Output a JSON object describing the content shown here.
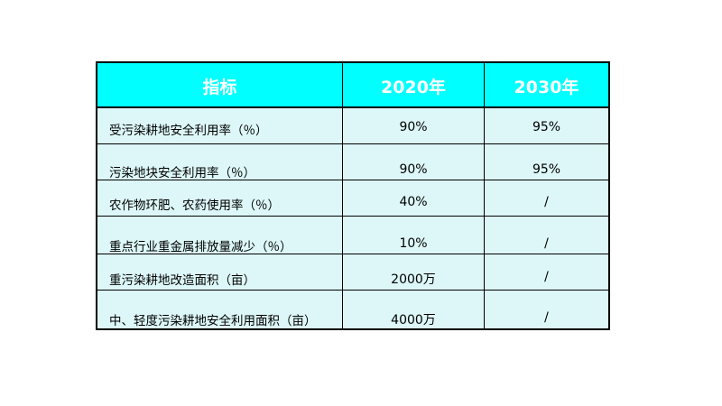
{
  "table": {
    "headers": [
      "指标",
      "2020年",
      "2030年"
    ],
    "rows": [
      {
        "indicator": "受污染耕地安全利用率（％）",
        "y2020": "90%",
        "y2030": "95%"
      },
      {
        "indicator": "污染地块安全利用率（％）",
        "y2020": "90%",
        "y2030": "95%"
      },
      {
        "indicator": "农作物环肥、农药使用率（％）",
        "y2020": "40%",
        "y2030": "/"
      },
      {
        "indicator": "重点行业重金属排放量减少（％）",
        "y2020": "10%",
        "y2030": "/"
      },
      {
        "indicator": "重污染耕地改造面积（亩）",
        "y2020": "2000万",
        "y2030": "/"
      },
      {
        "indicator": "中、轻度污染耕地安全利用面积（亩）",
        "y2020": "4000万",
        "y2030": "/"
      }
    ],
    "colors": {
      "header_bg": "#00ffff",
      "header_text": "#ffffff",
      "row_bg": "#ddf7f8"
    }
  }
}
